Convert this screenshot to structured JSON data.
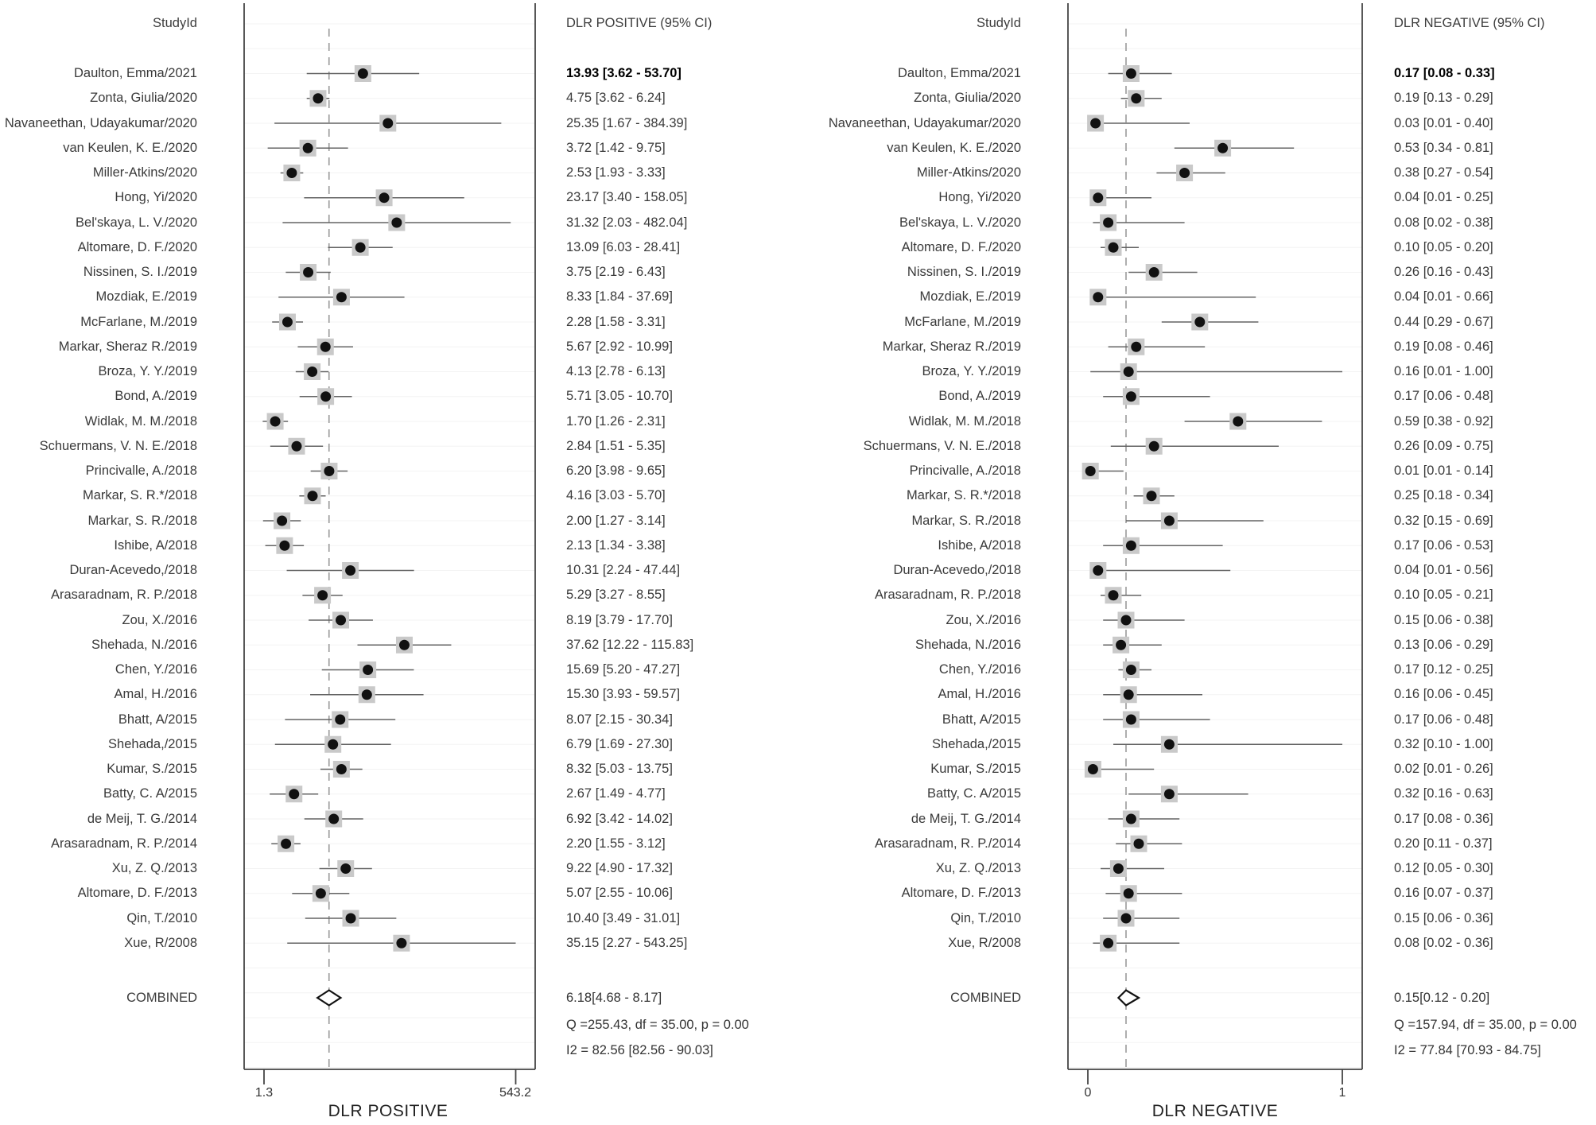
{
  "style": {
    "background": "#ffffff",
    "marker_color": "#111111",
    "weight_box_color": "#c9c9c9",
    "ci_line_color": "#636363",
    "reference_line_color": "#9a9a9a",
    "border_color": "#454545",
    "gridline_color": "#f3f3f3"
  },
  "chart_data": [
    {
      "type": "forest",
      "id": "dlr-positive",
      "column_header": "StudyId",
      "values_header": "DLR POSITIVE (95% CI)",
      "xlabel": "DLR POSITIVE",
      "scale": "log",
      "xlim": [
        1.3,
        543.2
      ],
      "tick_labels": [
        "1.3",
        "543.2"
      ],
      "reference_line": 6.18,
      "legend_position": "none",
      "grid": true,
      "studies": [
        {
          "name": "Daulton, Emma/2021",
          "est": 13.93,
          "lo": 3.62,
          "hi": 53.7,
          "text": "13.93 [3.62 - 53.70]"
        },
        {
          "name": "Zonta, Giulia/2020",
          "est": 4.75,
          "lo": 3.62,
          "hi": 6.24,
          "text": "4.75 [3.62 - 6.24]"
        },
        {
          "name": "Navaneethan, Udayakumar/2020",
          "est": 25.35,
          "lo": 1.67,
          "hi": 384.39,
          "text": "25.35 [1.67 - 384.39]"
        },
        {
          "name": "van Keulen, K. E./2020",
          "est": 3.72,
          "lo": 1.42,
          "hi": 9.75,
          "text": "3.72 [1.42 - 9.75]"
        },
        {
          "name": "Miller-Atkins/2020",
          "est": 2.53,
          "lo": 1.93,
          "hi": 3.33,
          "text": "2.53 [1.93 - 3.33]"
        },
        {
          "name": "Hong, Yi/2020",
          "est": 23.17,
          "lo": 3.4,
          "hi": 158.05,
          "text": "23.17 [3.40 - 158.05]"
        },
        {
          "name": "Bel'skaya, L. V./2020",
          "est": 31.32,
          "lo": 2.03,
          "hi": 482.04,
          "text": "31.32 [2.03 - 482.04]"
        },
        {
          "name": "Altomare, D. F./2020",
          "est": 13.09,
          "lo": 6.03,
          "hi": 28.41,
          "text": "13.09 [6.03 - 28.41]"
        },
        {
          "name": "Nissinen, S. I./2019",
          "est": 3.75,
          "lo": 2.19,
          "hi": 6.43,
          "text": "3.75 [2.19 - 6.43]"
        },
        {
          "name": "Mozdiak, E./2019",
          "est": 8.33,
          "lo": 1.84,
          "hi": 37.69,
          "text": "8.33 [1.84 - 37.69]"
        },
        {
          "name": "McFarlane, M./2019",
          "est": 2.28,
          "lo": 1.58,
          "hi": 3.31,
          "text": "2.28 [1.58 - 3.31]"
        },
        {
          "name": "Markar, Sheraz R./2019",
          "est": 5.67,
          "lo": 2.92,
          "hi": 10.99,
          "text": "5.67 [2.92 - 10.99]"
        },
        {
          "name": "Broza, Y. Y./2019",
          "est": 4.13,
          "lo": 2.78,
          "hi": 6.13,
          "text": "4.13 [2.78 - 6.13]"
        },
        {
          "name": "Bond, A./2019",
          "est": 5.71,
          "lo": 3.05,
          "hi": 10.7,
          "text": "5.71 [3.05 - 10.70]"
        },
        {
          "name": "Widlak, M. M./2018",
          "est": 1.7,
          "lo": 1.26,
          "hi": 2.31,
          "text": "1.70 [1.26 - 2.31]"
        },
        {
          "name": "Schuermans, V. N. E./2018",
          "est": 2.84,
          "lo": 1.51,
          "hi": 5.35,
          "text": "2.84 [1.51 - 5.35]"
        },
        {
          "name": "Princivalle, A./2018",
          "est": 6.2,
          "lo": 3.98,
          "hi": 9.65,
          "text": "6.20 [3.98 - 9.65]"
        },
        {
          "name": "Markar, S. R.*/2018",
          "est": 4.16,
          "lo": 3.03,
          "hi": 5.7,
          "text": "4.16 [3.03 - 5.70]"
        },
        {
          "name": "Markar, S. R./2018",
          "est": 2.0,
          "lo": 1.27,
          "hi": 3.14,
          "text": "2.00 [1.27 - 3.14]"
        },
        {
          "name": "Ishibe, A/2018",
          "est": 2.13,
          "lo": 1.34,
          "hi": 3.38,
          "text": "2.13 [1.34 - 3.38]"
        },
        {
          "name": "Duran-Acevedo,/2018",
          "est": 10.31,
          "lo": 2.24,
          "hi": 47.44,
          "text": "10.31 [2.24 - 47.44]"
        },
        {
          "name": "Arasaradnam, R. P./2018",
          "est": 5.29,
          "lo": 3.27,
          "hi": 8.55,
          "text": "5.29 [3.27 - 8.55]"
        },
        {
          "name": "Zou, X./2016",
          "est": 8.19,
          "lo": 3.79,
          "hi": 17.7,
          "text": "8.19 [3.79 - 17.70]"
        },
        {
          "name": "Shehada, N./2016",
          "est": 37.62,
          "lo": 12.22,
          "hi": 115.83,
          "text": "37.62 [12.22 - 115.83]"
        },
        {
          "name": "Chen, Y./2016",
          "est": 15.69,
          "lo": 5.2,
          "hi": 47.27,
          "text": "15.69 [5.20 - 47.27]"
        },
        {
          "name": "Amal, H./2016",
          "est": 15.3,
          "lo": 3.93,
          "hi": 59.57,
          "text": "15.30 [3.93 - 59.57]"
        },
        {
          "name": "Bhatt, A/2015",
          "est": 8.07,
          "lo": 2.15,
          "hi": 30.34,
          "text": "8.07 [2.15 - 30.34]"
        },
        {
          "name": "Shehada,/2015",
          "est": 6.79,
          "lo": 1.69,
          "hi": 27.3,
          "text": "6.79 [1.69 - 27.30]"
        },
        {
          "name": "Kumar, S./2015",
          "est": 8.32,
          "lo": 5.03,
          "hi": 13.75,
          "text": "8.32 [5.03 - 13.75]"
        },
        {
          "name": "Batty, C. A/2015",
          "est": 2.67,
          "lo": 1.49,
          "hi": 4.77,
          "text": "2.67 [1.49 - 4.77]"
        },
        {
          "name": "de Meij, T. G./2014",
          "est": 6.92,
          "lo": 3.42,
          "hi": 14.02,
          "text": "6.92 [3.42 - 14.02]"
        },
        {
          "name": "Arasaradnam, R. P./2014",
          "est": 2.2,
          "lo": 1.55,
          "hi": 3.12,
          "text": "2.20 [1.55 - 3.12]"
        },
        {
          "name": "Xu, Z. Q./2013",
          "est": 9.22,
          "lo": 4.9,
          "hi": 17.32,
          "text": "9.22 [4.90 - 17.32]"
        },
        {
          "name": "Altomare, D. F./2013",
          "est": 5.07,
          "lo": 2.55,
          "hi": 10.06,
          "text": "5.07 [2.55 - 10.06]"
        },
        {
          "name": "Qin, T./2010",
          "est": 10.4,
          "lo": 3.49,
          "hi": 31.01,
          "text": "10.40 [3.49 - 31.01]"
        },
        {
          "name": "Xue, R/2008",
          "est": 35.15,
          "lo": 2.27,
          "hi": 543.25,
          "text": "35.15 [2.27 - 543.25]"
        }
      ],
      "combined": {
        "label": "COMBINED",
        "est": 6.18,
        "lo": 4.68,
        "hi": 8.17,
        "text": "6.18[4.68 - 8.17]"
      },
      "q_text": "Q =255.43, df = 35.00, p =  0.00",
      "i2_text": "I2 = 82.56 [82.56 - 90.03]"
    },
    {
      "type": "forest",
      "id": "dlr-negative",
      "column_header": "StudyId",
      "values_header": "DLR NEGATIVE (95% CI)",
      "xlabel": "DLR NEGATIVE",
      "scale": "linear",
      "xlim": [
        0,
        1
      ],
      "tick_labels": [
        "0",
        "1"
      ],
      "reference_line": 0.15,
      "legend_position": "none",
      "grid": true,
      "studies": [
        {
          "name": "Daulton, Emma/2021",
          "est": 0.17,
          "lo": 0.08,
          "hi": 0.33,
          "text": "0.17 [0.08 - 0.33]"
        },
        {
          "name": "Zonta, Giulia/2020",
          "est": 0.19,
          "lo": 0.13,
          "hi": 0.29,
          "text": "0.19 [0.13 - 0.29]"
        },
        {
          "name": "Navaneethan, Udayakumar/2020",
          "est": 0.03,
          "lo": 0.01,
          "hi": 0.4,
          "text": "0.03 [0.01 - 0.40]"
        },
        {
          "name": "van Keulen, K. E./2020",
          "est": 0.53,
          "lo": 0.34,
          "hi": 0.81,
          "text": "0.53 [0.34 - 0.81]"
        },
        {
          "name": "Miller-Atkins/2020",
          "est": 0.38,
          "lo": 0.27,
          "hi": 0.54,
          "text": "0.38 [0.27 - 0.54]"
        },
        {
          "name": "Hong, Yi/2020",
          "est": 0.04,
          "lo": 0.01,
          "hi": 0.25,
          "text": "0.04 [0.01 - 0.25]"
        },
        {
          "name": "Bel'skaya, L. V./2020",
          "est": 0.08,
          "lo": 0.02,
          "hi": 0.38,
          "text": "0.08 [0.02 - 0.38]"
        },
        {
          "name": "Altomare, D. F./2020",
          "est": 0.1,
          "lo": 0.05,
          "hi": 0.2,
          "text": "0.10 [0.05 - 0.20]"
        },
        {
          "name": "Nissinen, S. I./2019",
          "est": 0.26,
          "lo": 0.16,
          "hi": 0.43,
          "text": "0.26 [0.16 - 0.43]"
        },
        {
          "name": "Mozdiak, E./2019",
          "est": 0.04,
          "lo": 0.01,
          "hi": 0.66,
          "text": "0.04 [0.01 - 0.66]"
        },
        {
          "name": "McFarlane, M./2019",
          "est": 0.44,
          "lo": 0.29,
          "hi": 0.67,
          "text": "0.44 [0.29 - 0.67]"
        },
        {
          "name": "Markar, Sheraz R./2019",
          "est": 0.19,
          "lo": 0.08,
          "hi": 0.46,
          "text": "0.19 [0.08 - 0.46]"
        },
        {
          "name": "Broza, Y. Y./2019",
          "est": 0.16,
          "lo": 0.01,
          "hi": 1.0,
          "text": "0.16 [0.01 - 1.00]"
        },
        {
          "name": "Bond, A./2019",
          "est": 0.17,
          "lo": 0.06,
          "hi": 0.48,
          "text": "0.17 [0.06 - 0.48]"
        },
        {
          "name": "Widlak, M. M./2018",
          "est": 0.59,
          "lo": 0.38,
          "hi": 0.92,
          "text": "0.59 [0.38 - 0.92]"
        },
        {
          "name": "Schuermans, V. N. E./2018",
          "est": 0.26,
          "lo": 0.09,
          "hi": 0.75,
          "text": "0.26 [0.09 - 0.75]"
        },
        {
          "name": "Princivalle, A./2018",
          "est": 0.01,
          "lo": 0.01,
          "hi": 0.14,
          "text": "0.01 [0.01 - 0.14]"
        },
        {
          "name": "Markar, S. R.*/2018",
          "est": 0.25,
          "lo": 0.18,
          "hi": 0.34,
          "text": "0.25 [0.18 - 0.34]"
        },
        {
          "name": "Markar, S. R./2018",
          "est": 0.32,
          "lo": 0.15,
          "hi": 0.69,
          "text": "0.32 [0.15 - 0.69]"
        },
        {
          "name": "Ishibe, A/2018",
          "est": 0.17,
          "lo": 0.06,
          "hi": 0.53,
          "text": "0.17 [0.06 - 0.53]"
        },
        {
          "name": "Duran-Acevedo,/2018",
          "est": 0.04,
          "lo": 0.01,
          "hi": 0.56,
          "text": "0.04 [0.01 - 0.56]"
        },
        {
          "name": "Arasaradnam, R. P./2018",
          "est": 0.1,
          "lo": 0.05,
          "hi": 0.21,
          "text": "0.10 [0.05 - 0.21]"
        },
        {
          "name": "Zou, X./2016",
          "est": 0.15,
          "lo": 0.06,
          "hi": 0.38,
          "text": "0.15 [0.06 - 0.38]"
        },
        {
          "name": "Shehada, N./2016",
          "est": 0.13,
          "lo": 0.06,
          "hi": 0.29,
          "text": "0.13 [0.06 - 0.29]"
        },
        {
          "name": "Chen, Y./2016",
          "est": 0.17,
          "lo": 0.12,
          "hi": 0.25,
          "text": "0.17 [0.12 - 0.25]"
        },
        {
          "name": "Amal, H./2016",
          "est": 0.16,
          "lo": 0.06,
          "hi": 0.45,
          "text": "0.16 [0.06 - 0.45]"
        },
        {
          "name": "Bhatt, A/2015",
          "est": 0.17,
          "lo": 0.06,
          "hi": 0.48,
          "text": "0.17 [0.06 - 0.48]"
        },
        {
          "name": "Shehada,/2015",
          "est": 0.32,
          "lo": 0.1,
          "hi": 1.0,
          "text": "0.32 [0.10 - 1.00]"
        },
        {
          "name": "Kumar, S./2015",
          "est": 0.02,
          "lo": 0.01,
          "hi": 0.26,
          "text": "0.02 [0.01 - 0.26]"
        },
        {
          "name": "Batty, C. A/2015",
          "est": 0.32,
          "lo": 0.16,
          "hi": 0.63,
          "text": "0.32 [0.16 - 0.63]"
        },
        {
          "name": "de Meij, T. G./2014",
          "est": 0.17,
          "lo": 0.08,
          "hi": 0.36,
          "text": "0.17 [0.08 - 0.36]"
        },
        {
          "name": "Arasaradnam, R. P./2014",
          "est": 0.2,
          "lo": 0.11,
          "hi": 0.37,
          "text": "0.20 [0.11 - 0.37]"
        },
        {
          "name": "Xu, Z. Q./2013",
          "est": 0.12,
          "lo": 0.05,
          "hi": 0.3,
          "text": "0.12 [0.05 - 0.30]"
        },
        {
          "name": "Altomare, D. F./2013",
          "est": 0.16,
          "lo": 0.07,
          "hi": 0.37,
          "text": "0.16 [0.07 - 0.37]"
        },
        {
          "name": "Qin, T./2010",
          "est": 0.15,
          "lo": 0.06,
          "hi": 0.36,
          "text": "0.15 [0.06 - 0.36]"
        },
        {
          "name": "Xue, R/2008",
          "est": 0.08,
          "lo": 0.02,
          "hi": 0.36,
          "text": "0.08 [0.02 - 0.36]"
        }
      ],
      "combined": {
        "label": "COMBINED",
        "est": 0.15,
        "lo": 0.12,
        "hi": 0.2,
        "text": "0.15[0.12 - 0.20]"
      },
      "q_text": "Q =157.94, df = 35.00, p =  0.00",
      "i2_text": "I2 = 77.84 [70.93 - 84.75]"
    }
  ]
}
